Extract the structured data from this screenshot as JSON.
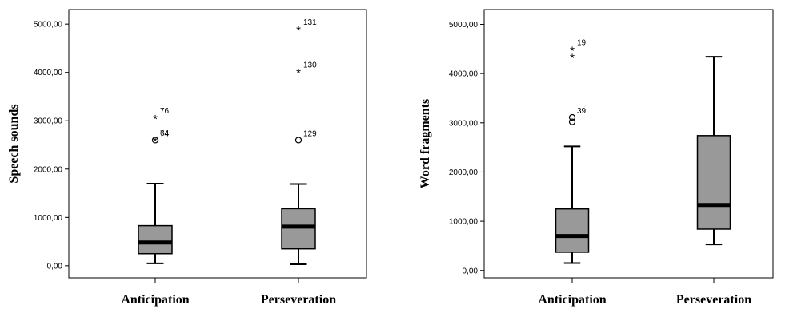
{
  "chart_data": [
    {
      "type": "boxplot",
      "ylabel": "Speech sounds",
      "ylim": [
        -250,
        5300
      ],
      "yticks": [
        "0,00",
        "1000,00",
        "2000,00",
        "3000,00",
        "4000,00",
        "5000,00"
      ],
      "ytick_values": [
        0,
        1000,
        2000,
        3000,
        4000,
        5000
      ],
      "categories": [
        "Anticipation",
        "Perseveration"
      ],
      "boxes": [
        {
          "category": "Anticipation",
          "whisker_low": 50,
          "q1": 250,
          "median": 480,
          "q3": 830,
          "whisker_high": 1700,
          "outliers": [
            {
              "value": 2600,
              "marker": "o",
              "label": "74"
            },
            {
              "value": 2610,
              "marker": "*",
              "label": "64"
            },
            {
              "value": 3070,
              "marker": "*",
              "label": "76"
            }
          ]
        },
        {
          "category": "Perseveration",
          "whisker_low": 30,
          "q1": 350,
          "median": 810,
          "q3": 1180,
          "whisker_high": 1690,
          "outliers": [
            {
              "value": 2600,
              "marker": "o",
              "label": "129"
            },
            {
              "value": 4020,
              "marker": "*",
              "label": "130"
            },
            {
              "value": 4900,
              "marker": "*",
              "label": "131"
            }
          ]
        }
      ]
    },
    {
      "type": "boxplot",
      "ylabel": "Word fragments",
      "ylim": [
        -150,
        5300
      ],
      "yticks": [
        "0,00",
        "1000,00",
        "2000,00",
        "3000,00",
        "4000,00",
        "5000,00"
      ],
      "ytick_values": [
        0,
        1000,
        2000,
        3000,
        4000,
        5000
      ],
      "categories": [
        "Anticipation",
        "Perseveration"
      ],
      "boxes": [
        {
          "category": "Anticipation",
          "whisker_low": 150,
          "q1": 370,
          "median": 700,
          "q3": 1250,
          "whisker_high": 2520,
          "outliers": [
            {
              "value": 3020,
              "marker": "o",
              "label": ""
            },
            {
              "value": 3110,
              "marker": "o",
              "label": "39"
            },
            {
              "value": 4350,
              "marker": "*",
              "label": ""
            },
            {
              "value": 4500,
              "marker": "*",
              "label": "19"
            }
          ]
        },
        {
          "category": "Perseveration",
          "whisker_low": 530,
          "q1": 840,
          "median": 1330,
          "q3": 2740,
          "whisker_high": 4340,
          "outliers": []
        }
      ]
    }
  ]
}
